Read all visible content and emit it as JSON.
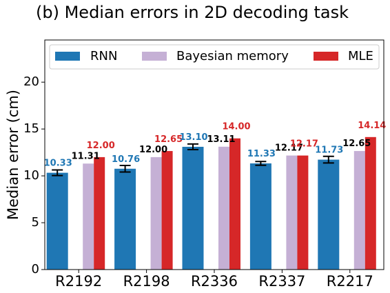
{
  "chart_data": {
    "type": "bar",
    "title": "(b)   Median errors in 2D decoding task",
    "ylabel": "Median error (cm)",
    "xlabel": "",
    "ylim": [
      0,
      24.5
    ],
    "yticks": [
      0,
      5,
      10,
      15,
      20
    ],
    "categories": [
      "R2192",
      "R2198",
      "R2336",
      "R2337",
      "R2217"
    ],
    "legend_position": "top, full width",
    "grid": false,
    "series": [
      {
        "name": "RNN",
        "color": "#1f77b4",
        "values": [
          10.33,
          10.76,
          13.1,
          11.33,
          11.73
        ],
        "labels": [
          "10.33",
          "10.76",
          "13.10",
          "11.33",
          "11.73"
        ],
        "error": [
          0.3,
          0.35,
          0.3,
          0.2,
          0.35
        ],
        "label_color": "#1f77b4"
      },
      {
        "name": "Bayesian memory",
        "color": "#c5b0d5",
        "values": [
          11.31,
          12.0,
          13.11,
          12.17,
          12.65
        ],
        "labels": [
          "11.31",
          "12.00",
          "13.11",
          "12.17",
          "12.65"
        ],
        "label_color": "#000000"
      },
      {
        "name": "MLE",
        "color": "#d62728",
        "values": [
          12.0,
          12.65,
          14.0,
          12.17,
          14.14
        ],
        "labels": [
          "12.00",
          "12.65",
          "14.00",
          "12.17",
          "14.14"
        ],
        "label_color": "#d62728"
      }
    ]
  }
}
